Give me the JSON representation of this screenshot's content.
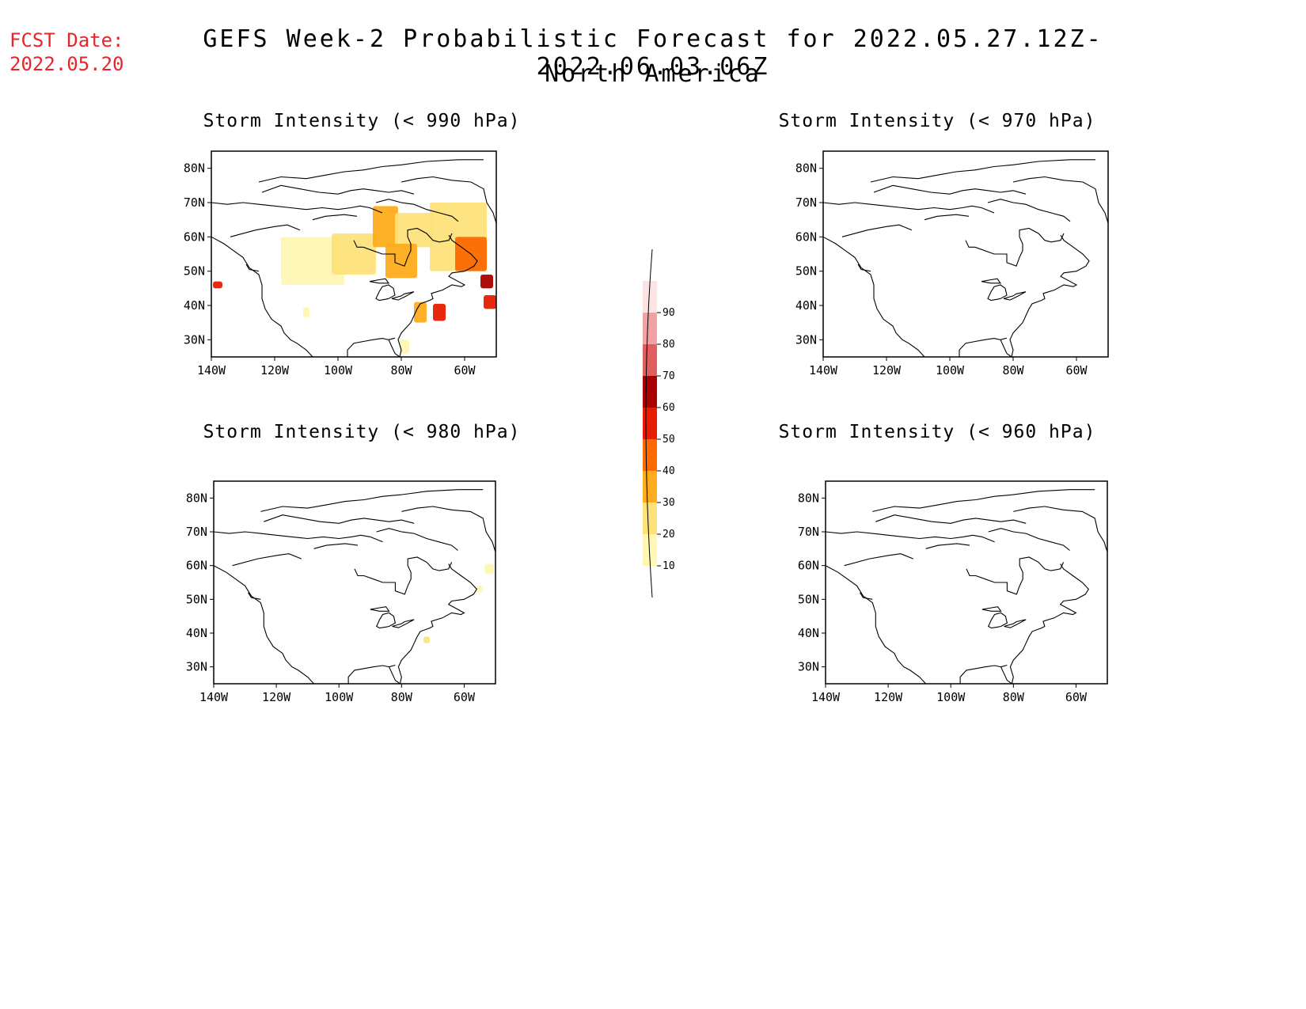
{
  "fcst": {
    "line1": "FCST Date:",
    "line2": "2022.05.20"
  },
  "title": {
    "line1": "GEFS Week-2 Probabilistic Forecast for 2022.05.27.12Z-2022.06.03.06Z",
    "line2": "North America"
  },
  "colors": {
    "fcst": "#e8262a",
    "coast": "#000000"
  },
  "axes": {
    "lat_labels": [
      "80N",
      "70N",
      "60N",
      "50N",
      "40N",
      "30N"
    ],
    "lat_values": [
      80,
      70,
      60,
      50,
      40,
      30
    ],
    "lon_labels": [
      "140W",
      "120W",
      "100W",
      "80W",
      "60W"
    ],
    "lon_values": [
      -140,
      -120,
      -100,
      -80,
      -60
    ],
    "lon_range": [
      -140,
      -50
    ],
    "lat_range": [
      25,
      85
    ]
  },
  "panels": [
    {
      "id": "p990",
      "title": "Storm Intensity (< 990 hPa)",
      "has_shading": true
    },
    {
      "id": "p970",
      "title": "Storm Intensity (< 970 hPa)",
      "has_shading": false
    },
    {
      "id": "p980",
      "title": "Storm Intensity (< 980 hPa)",
      "has_shading": true
    },
    {
      "id": "p960",
      "title": "Storm Intensity (< 960 hPa)",
      "has_shading": false
    }
  ],
  "colorbar": {
    "levels": [
      "10",
      "20",
      "30",
      "40",
      "50",
      "60",
      "70",
      "80",
      "90"
    ],
    "colors": [
      "#fff7b3",
      "#fde27a",
      "#fdac1c",
      "#fc6a00",
      "#e81d00",
      "#a90000",
      "#e06060",
      "#f2a2a2",
      "#fde4e4"
    ]
  },
  "shading": {
    "p990": [
      {
        "lon": -108,
        "lat": 53,
        "w": 20,
        "h": 14,
        "c": 0
      },
      {
        "lon": -95,
        "lat": 55,
        "w": 14,
        "h": 12,
        "c": 1
      },
      {
        "lon": -85,
        "lat": 63,
        "w": 8,
        "h": 12,
        "c": 2
      },
      {
        "lon": -76,
        "lat": 62,
        "w": 12,
        "h": 10,
        "c": 1
      },
      {
        "lon": -62,
        "lat": 60,
        "w": 18,
        "h": 20,
        "c": 1
      },
      {
        "lon": -58,
        "lat": 55,
        "w": 10,
        "h": 10,
        "c": 3
      },
      {
        "lon": -80,
        "lat": 53,
        "w": 10,
        "h": 10,
        "c": 2
      },
      {
        "lon": -53,
        "lat": 47,
        "w": 4,
        "h": 4,
        "c": 5
      },
      {
        "lon": -52,
        "lat": 41,
        "w": 4,
        "h": 4,
        "c": 4
      },
      {
        "lon": -68,
        "lat": 38,
        "w": 4,
        "h": 5,
        "c": 4
      },
      {
        "lon": -74,
        "lat": 38,
        "w": 4,
        "h": 6,
        "c": 2
      },
      {
        "lon": -138,
        "lat": 46,
        "w": 3,
        "h": 2,
        "c": 4
      },
      {
        "lon": -110,
        "lat": 38,
        "w": 2,
        "h": 3,
        "c": 0
      },
      {
        "lon": -79,
        "lat": 28,
        "w": 3,
        "h": 4,
        "c": 0
      }
    ],
    "p980": [
      {
        "lon": -52,
        "lat": 59,
        "w": 3,
        "h": 3,
        "c": 0
      },
      {
        "lon": -55,
        "lat": 53,
        "w": 2,
        "h": 2,
        "c": 0
      },
      {
        "lon": -72,
        "lat": 38,
        "w": 2,
        "h": 2,
        "c": 1
      }
    ]
  }
}
